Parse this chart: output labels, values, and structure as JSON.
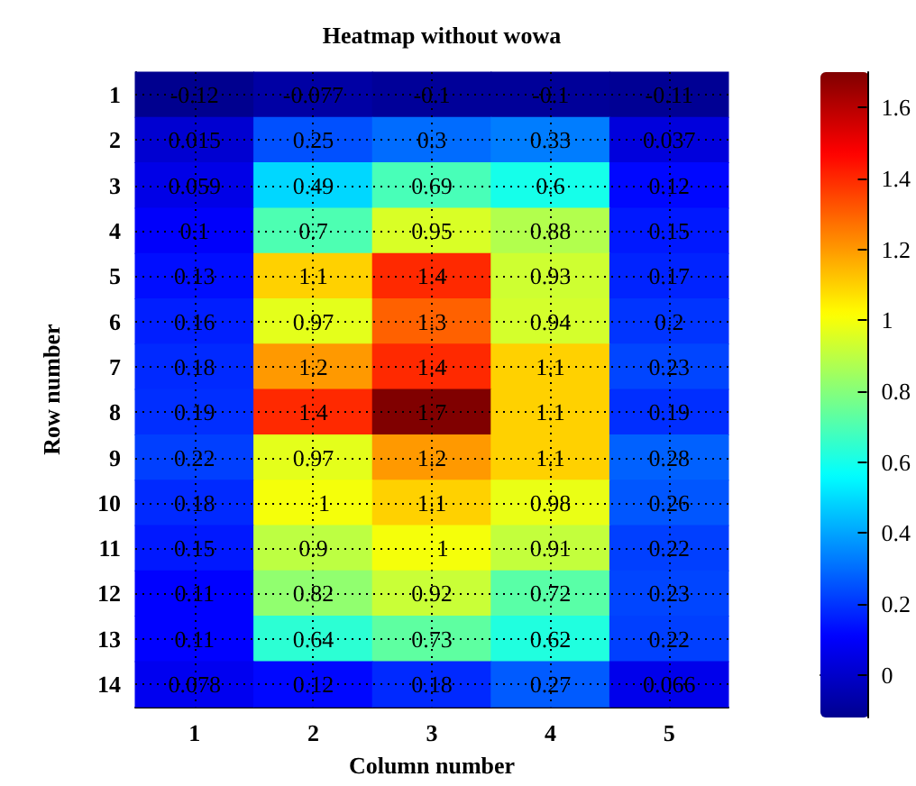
{
  "chart_data": {
    "type": "heatmap",
    "title": "Heatmap without wowa",
    "xlabel": "Column number",
    "ylabel": "Row number",
    "categories": [
      "1",
      "2",
      "3",
      "4",
      "5"
    ],
    "y_categories": [
      "1",
      "2",
      "3",
      "4",
      "5",
      "6",
      "7",
      "8",
      "9",
      "10",
      "11",
      "12",
      "13",
      "14"
    ],
    "cells": [
      [
        -0.12,
        -0.077,
        -0.1,
        -0.1,
        -0.11
      ],
      [
        0.015,
        0.25,
        0.3,
        0.33,
        0.037
      ],
      [
        0.059,
        0.49,
        0.69,
        0.6,
        0.12
      ],
      [
        0.1,
        0.7,
        0.95,
        0.88,
        0.15
      ],
      [
        0.13,
        1.1,
        1.4,
        0.93,
        0.17
      ],
      [
        0.16,
        0.97,
        1.3,
        0.94,
        0.2
      ],
      [
        0.18,
        1.2,
        1.4,
        1.1,
        0.23
      ],
      [
        0.19,
        1.4,
        1.7,
        1.1,
        0.19
      ],
      [
        0.22,
        0.97,
        1.2,
        1.1,
        0.28
      ],
      [
        0.18,
        1,
        1.1,
        0.98,
        0.26
      ],
      [
        0.15,
        0.9,
        1,
        0.91,
        0.22
      ],
      [
        0.11,
        0.82,
        0.92,
        0.72,
        0.23
      ],
      [
        0.11,
        0.64,
        0.73,
        0.62,
        0.22
      ],
      [
        0.078,
        0.12,
        0.18,
        0.27,
        0.066
      ]
    ],
    "clim": [
      -0.12,
      1.7
    ],
    "cticks": [
      0,
      0.2,
      0.4,
      0.6,
      0.8,
      1,
      1.2,
      1.4,
      1.6
    ],
    "data_labels": true,
    "grid": true
  }
}
